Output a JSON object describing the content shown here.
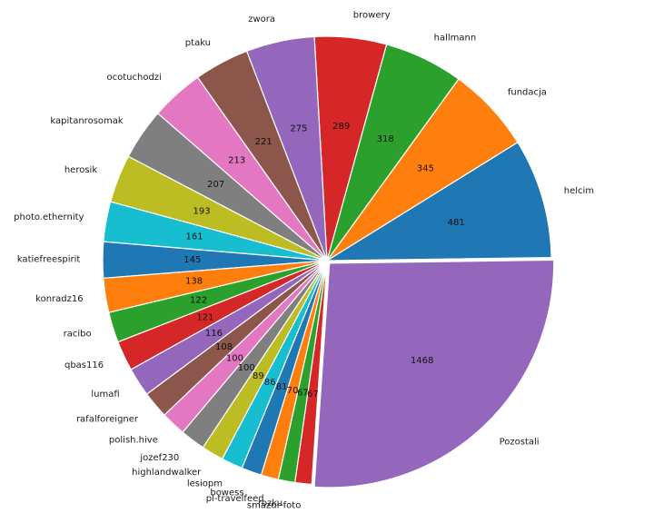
{
  "chart_data": {
    "type": "pie",
    "title": "",
    "start_angle_deg": 0.8,
    "direction": "counterclockwise",
    "legend": "none",
    "slices": [
      {
        "label": "helcim",
        "value": 481,
        "color": "#1f77b4"
      },
      {
        "label": "fundacja",
        "value": 345,
        "color": "#ff7f0e"
      },
      {
        "label": "hallmann",
        "value": 318,
        "color": "#2ca02c"
      },
      {
        "label": "browery",
        "value": 289,
        "color": "#d62728"
      },
      {
        "label": "zwora",
        "value": 275,
        "color": "#9467bd"
      },
      {
        "label": "ptaku",
        "value": 221,
        "color": "#8c564b"
      },
      {
        "label": "ocotuchodzi",
        "value": 213,
        "color": "#e377c2"
      },
      {
        "label": "kapitanrosomak",
        "value": 207,
        "color": "#7f7f7f"
      },
      {
        "label": "herosik",
        "value": 193,
        "color": "#bcbd22"
      },
      {
        "label": "photo.ethernity",
        "value": 161,
        "color": "#17becf"
      },
      {
        "label": "katiefreespirit",
        "value": 145,
        "color": "#1f77b4"
      },
      {
        "label": "konradz16",
        "value": 138,
        "color": "#ff7f0e"
      },
      {
        "label": "racibo",
        "value": 122,
        "color": "#2ca02c"
      },
      {
        "label": "qbas116",
        "value": 121,
        "color": "#d62728"
      },
      {
        "label": "lumafi",
        "value": 116,
        "color": "#9467bd"
      },
      {
        "label": "rafalforeigner",
        "value": 108,
        "color": "#8c564b"
      },
      {
        "label": "polish.hive",
        "value": 100,
        "color": "#e377c2"
      },
      {
        "label": "jozef230",
        "value": 100,
        "color": "#7f7f7f"
      },
      {
        "label": "highlandwalker",
        "value": 89,
        "color": "#bcbd22"
      },
      {
        "label": "lesiopm",
        "value": 86,
        "color": "#17becf"
      },
      {
        "label": "bowess",
        "value": 81,
        "color": "#1f77b4"
      },
      {
        "label": "pl-travelfeed",
        "value": 70,
        "color": "#ff7f0e"
      },
      {
        "label": "rozku",
        "value": 67,
        "color": "#2ca02c"
      },
      {
        "label": "smazur-foto",
        "value": 67,
        "color": "#d62728"
      },
      {
        "label": "Pozostali",
        "value": 1468,
        "color": "#9467bd",
        "explode": true
      }
    ]
  }
}
